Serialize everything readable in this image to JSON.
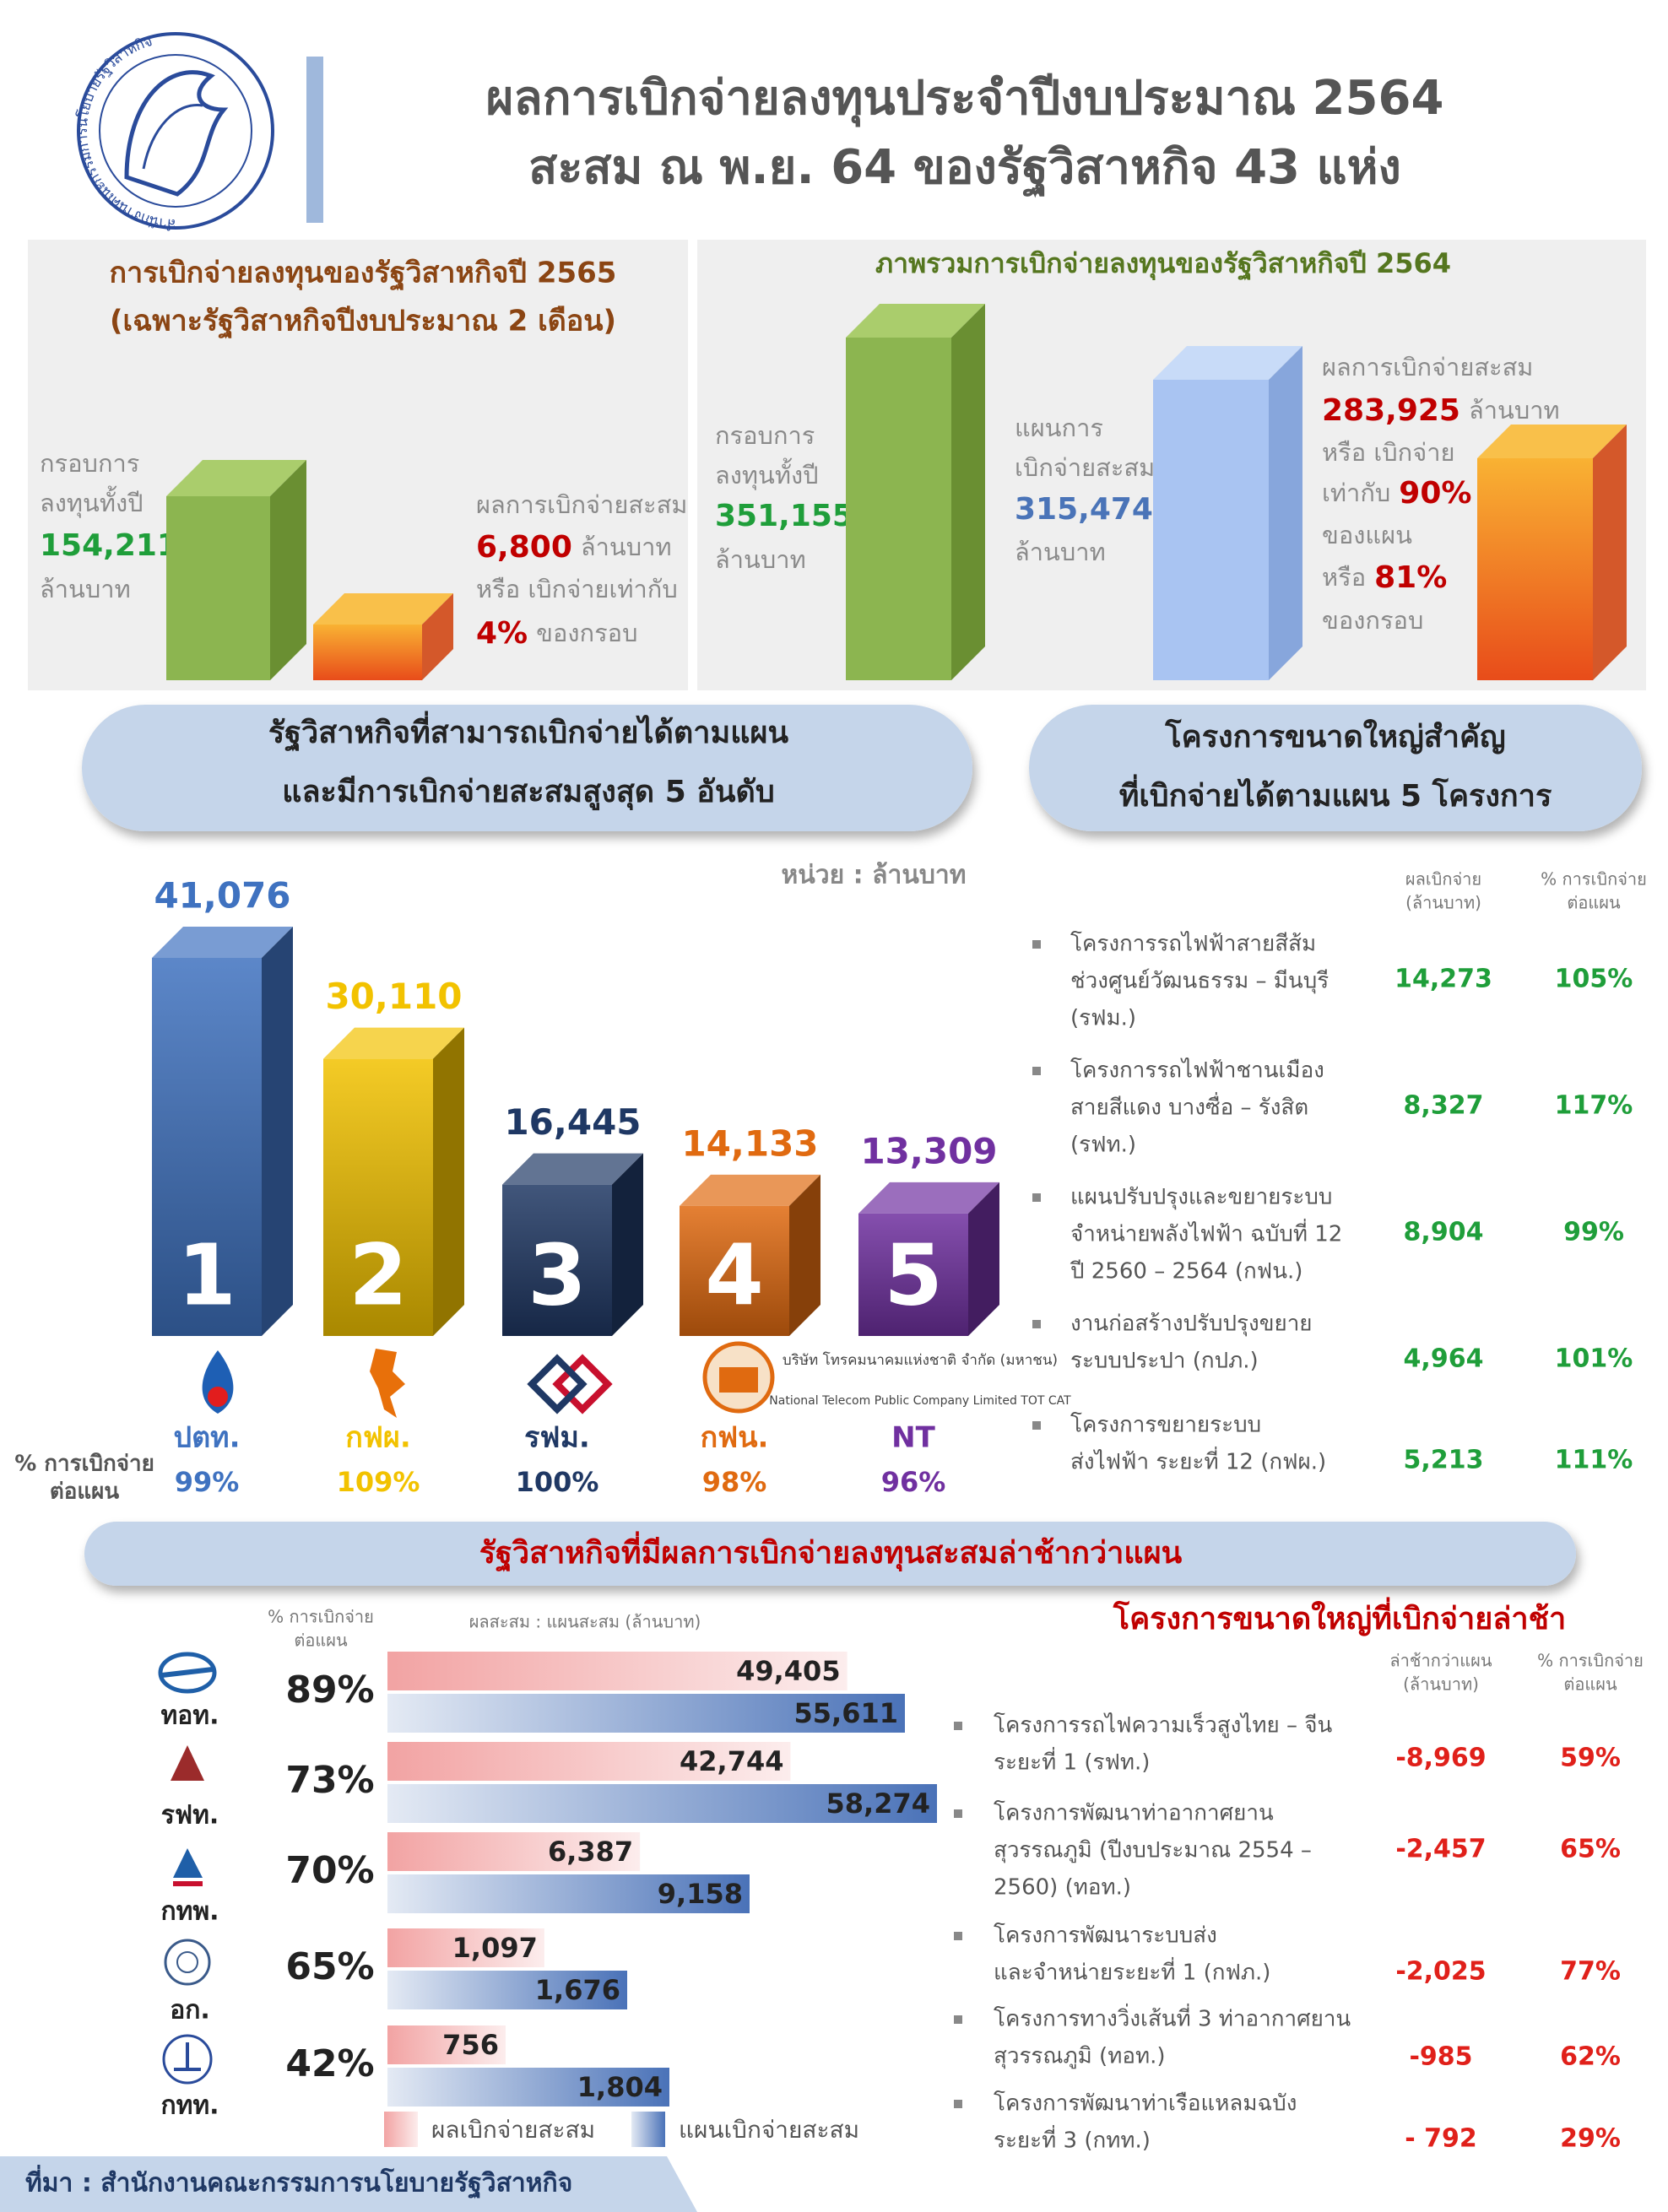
{
  "header": {
    "logo_text": "สำนักงานคณะกรรมการนโยบายรัฐวิสาหกิจ",
    "title_lines": [
      "ผลการเบิกจ่ายลงทุนประจำปีงบประมาณ 2564",
      "สะสม ณ พ.ย. 64 ของรัฐวิสาหกิจ 43 แห่ง"
    ]
  },
  "panel_2565": {
    "title_lines": [
      "การเบิกจ่ายลงทุนของรัฐวิสาหกิจปี 2565",
      "(เฉพาะรัฐวิสาหกิจปีงบประมาณ 2 เดือน)"
    ],
    "budget_lines": [
      "กรอบการ",
      "ลงทุนทั้งปี"
    ],
    "budget_value": "154,211",
    "budget_unit": "ล้านบาท",
    "disbursed_label": "ผลการเบิกจ่ายสะสม",
    "disbursed_value": "6,800",
    "disbursed_unit": "ล้านบาท",
    "ratio_label": "หรือ เบิกจ่ายเท่ากับ",
    "ratio_value": "4%",
    "ratio_suffix": "ของกรอบ"
  },
  "panel_2564": {
    "title": "ภาพรวมการเบิกจ่ายลงทุนของรัฐวิสาหกิจปี 2564",
    "budget_lines": [
      "กรอบการ",
      "ลงทุนทั้งปี"
    ],
    "budget_value": "351,155",
    "budget_unit": "ล้านบาท",
    "plan_lines": [
      "แผนการ",
      "เบิกจ่ายสะสม"
    ],
    "plan_value": "315,474",
    "plan_unit": "ล้านบาท",
    "result_label": "ผลการเบิกจ่ายสะสม",
    "result_value": "283,925",
    "result_unit": "ล้านบาท",
    "or_disbursed": "หรือ เบิกจ่าย",
    "equal_to": "เท่ากับ",
    "plan_ratio": "90%",
    "of_plan": "ของแผน",
    "or": "หรือ",
    "budget_ratio": "81%",
    "of_budget": "ของกรอบ"
  },
  "top5_heading_lines": [
    "รัฐวิสาหกิจที่สามารถเบิกจ่ายได้ตามแผน",
    "และมีการเบิกจ่ายสะสมสูงสุด 5 อันดับ"
  ],
  "projects_heading_lines": [
    "โครงการขนาดใหญ่สำคัญ",
    "ที่เบิกจ่ายได้ตามแผน 5 โครงการ"
  ],
  "lagging_heading": "รัฐวิสาหกิจที่มีผลการเบิกจ่ายลงทุนสะสมล่าช้ากว่าแผน",
  "chart_data": [
    {
      "type": "bar",
      "unit_label": "หน่วย : ล้านบาท",
      "categories": [
        "ปตท.",
        "กฟผ.",
        "รฟม.",
        "กฟน.",
        "NT"
      ],
      "values": [
        41076,
        30110,
        16445,
        14133,
        13309
      ],
      "value_labels": [
        "41,076",
        "30,110",
        "16,445",
        "14,133",
        "13,309"
      ],
      "colors": [
        "#3f72c0",
        "#f2c200",
        "#1f3864",
        "#e06a10",
        "#7030a0"
      ],
      "ranks": [
        "1",
        "2",
        "3",
        "4",
        "5"
      ],
      "rate_label_lines": [
        "% การเบิกจ่าย",
        "ต่อแผน"
      ],
      "rates": [
        "99%",
        "109%",
        "100%",
        "98%",
        "96%"
      ],
      "nt_logo_lines": [
        "บริษัท โทรคมนาคมแห่งชาติ จำกัด (มหาชน)",
        "National Telecom Public Company Limited TOT CAT"
      ]
    },
    {
      "type": "hbar",
      "rate_header_lines": [
        "% การเบิกจ่าย",
        "ต่อแผน"
      ],
      "value_header": "ผลสะสม : แผนสะสม (ล้านบาท)",
      "categories": [
        "ทอท.",
        "รฟท.",
        "กทพ.",
        "อก.",
        "กทท."
      ],
      "rates": [
        "89%",
        "73%",
        "70%",
        "65%",
        "42%"
      ],
      "series": [
        {
          "name": "ผลเบิกจ่ายสะสม",
          "color": "#f2a3a3",
          "values": [
            49405,
            42744,
            6387,
            1097,
            756
          ],
          "value_labels": [
            "49,405",
            "42,744",
            "6,387",
            "1,097",
            "756"
          ]
        },
        {
          "name": "แผนเบิกจ่ายสะสม",
          "color": "#4a72b8",
          "values": [
            55611,
            58274,
            9158,
            1676,
            1804
          ],
          "value_labels": [
            "55,611",
            "58,274",
            "9,158",
            "1,676",
            "1,804"
          ]
        }
      ]
    }
  ],
  "projects_on_plan": {
    "value_header_lines": [
      "ผลเบิกจ่าย",
      "(ล้านบาท)"
    ],
    "rate_header_lines": [
      "% การเบิกจ่าย",
      "ต่อแผน"
    ],
    "items": [
      {
        "lines": [
          "โครงการรถไฟฟ้าสายสีส้ม",
          "ช่วงศูนย์วัฒนธรรม – มีนบุรี",
          "(รฟม.)"
        ],
        "value": "14,273",
        "rate": "105%"
      },
      {
        "lines": [
          "โครงการรถไฟฟ้าชานเมือง",
          "สายสีแดง บางซื่อ – รังสิต",
          "(รฟท.)"
        ],
        "value": "8,327",
        "rate": "117%"
      },
      {
        "lines": [
          "แผนปรับปรุงและขยายระบบ",
          "จำหน่ายพลังไฟฟ้า ฉบับที่ 12",
          "ปี 2560 – 2564 (กฟน.)"
        ],
        "value": "8,904",
        "rate": "99%"
      },
      {
        "lines": [
          "งานก่อสร้างปรับปรุงขยาย",
          "ระบบประปา (กปภ.)"
        ],
        "value": "4,964",
        "rate": "101%"
      },
      {
        "lines": [
          "โครงการขยายระบบ",
          "ส่งไฟฟ้า ระยะที่ 12 (กฟผ.)"
        ],
        "value": "5,213",
        "rate": "111%"
      }
    ]
  },
  "projects_delayed": {
    "title": "โครงการขนาดใหญ่ที่เบิกจ่ายล่าช้า",
    "value_header_lines": [
      "ล่าช้ากว่าแผน",
      "(ล้านบาท)"
    ],
    "rate_header_lines": [
      "% การเบิกจ่าย",
      "ต่อแผน"
    ],
    "items": [
      {
        "lines": [
          "โครงการรถไฟความเร็วสูงไทย – จีน",
          "ระยะที่ 1 (รฟท.)"
        ],
        "value": "-8,969",
        "rate": "59%"
      },
      {
        "lines": [
          "โครงการพัฒนาท่าอากาศยาน",
          "สุวรรณภูมิ (ปีงบประมาณ 2554 –",
          "2560) (ทอท.)"
        ],
        "value": "-2,457",
        "rate": "65%"
      },
      {
        "lines": [
          "โครงการพัฒนาระบบส่ง",
          "และจำหน่ายระยะที่ 1 (กฟภ.)"
        ],
        "value": "-2,025",
        "rate": "77%"
      },
      {
        "lines": [
          "โครงการทางวิ่งเส้นที่ 3 ท่าอากาศยาน",
          "สุวรรณภูมิ (ทอท.)"
        ],
        "value": "-985",
        "rate": "62%"
      },
      {
        "lines": [
          "โครงการพัฒนาท่าเรือแหลมฉบัง",
          "ระยะที่ 3 (กทท.)"
        ],
        "value": "- 792",
        "rate": "29%"
      }
    ]
  },
  "footer": {
    "source": "ที่มา : สำนักงานคณะกรรมการนโยบายรัฐวิสาหกิจ"
  }
}
